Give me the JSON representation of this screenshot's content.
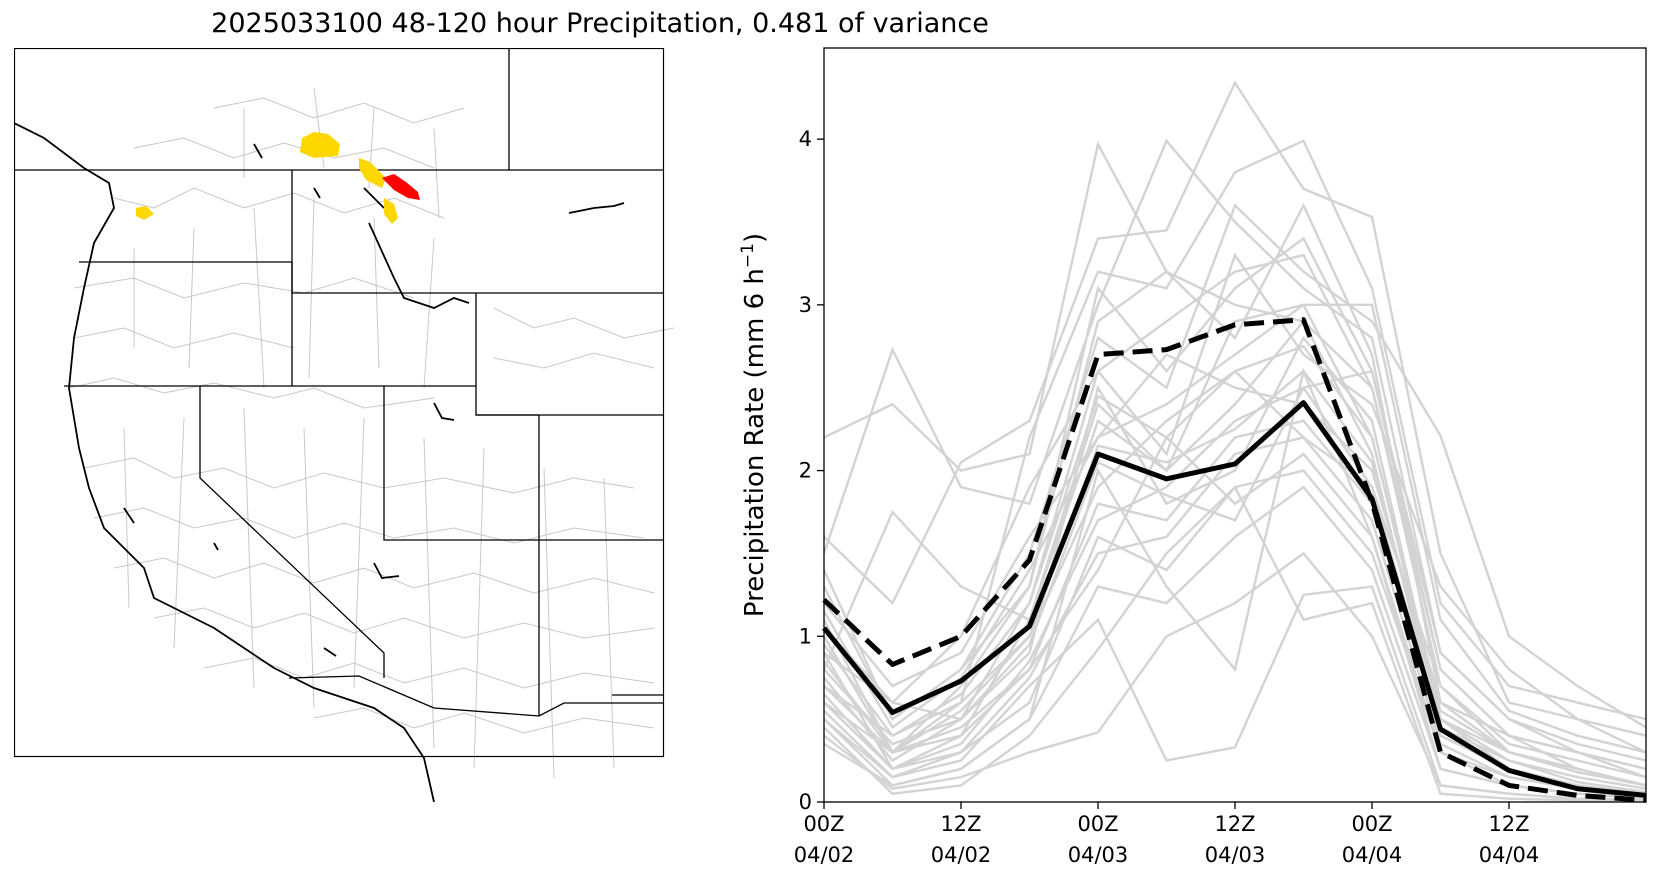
{
  "title": "2025033100 48-120 hour Precipitation, 0.481 of variance",
  "map": {
    "highlight_colors": {
      "moderate": "#FFD700",
      "high": "#FF0000"
    },
    "state_border_color": "#000000",
    "basin_border_color": "#BBBBBB"
  },
  "chart_data": {
    "type": "line",
    "ylabel": "Precipitation Rate (mm 6 h",
    "ylabel_sup": "−1",
    "ylabel_close": ")",
    "ylim": [
      0,
      4.55
    ],
    "xlim": [
      0,
      18
    ],
    "y_ticks": [
      0,
      1,
      2,
      3,
      4
    ],
    "x_ticks": [
      {
        "x": 0,
        "line1": "00Z",
        "line2": "04/02"
      },
      {
        "x": 3,
        "line1": "12Z",
        "line2": "04/02"
      },
      {
        "x": 6,
        "line1": "00Z",
        "line2": "04/03"
      },
      {
        "x": 9,
        "line1": "12Z",
        "line2": "04/03"
      },
      {
        "x": 12,
        "line1": "00Z",
        "line2": "04/04"
      },
      {
        "x": 15,
        "line1": "12Z",
        "line2": "04/04"
      }
    ],
    "x": [
      0,
      1.5,
      3,
      4.5,
      6,
      7.5,
      9,
      10.5,
      12,
      13.5,
      15,
      16.5,
      18
    ],
    "series": [
      {
        "style": "solid-black",
        "values": [
          1.05,
          0.54,
          0.73,
          1.06,
          2.1,
          1.95,
          2.04,
          2.41,
          1.83,
          0.44,
          0.19,
          0.08,
          0.04
        ]
      },
      {
        "style": "dashed-black",
        "values": [
          1.22,
          0.83,
          1.0,
          1.46,
          2.7,
          2.73,
          2.88,
          2.91,
          1.81,
          0.3,
          0.1,
          0.04,
          0.01
        ]
      }
    ],
    "ensemble_members": [
      [
        2.2,
        2.4,
        2.0,
        2.1,
        3.97,
        3.2,
        3.0,
        2.9,
        2.5,
        0.8,
        0.4,
        0.3,
        0.2
      ],
      [
        1.5,
        2.73,
        1.9,
        1.8,
        3.0,
        3.99,
        3.5,
        3.1,
        2.8,
        0.9,
        0.5,
        0.3,
        0.15
      ],
      [
        1.6,
        1.2,
        2.05,
        2.3,
        3.4,
        3.45,
        4.34,
        3.7,
        3.53,
        1.5,
        0.6,
        0.5,
        0.4
      ],
      [
        1.1,
        0.3,
        0.6,
        2.2,
        3.2,
        3.1,
        3.8,
        3.99,
        3.1,
        1.2,
        0.7,
        0.6,
        0.5
      ],
      [
        1.3,
        0.5,
        0.8,
        1.5,
        2.8,
        2.5,
        3.6,
        3.2,
        2.9,
        2.21,
        1.0,
        0.7,
        0.45
      ],
      [
        0.9,
        0.6,
        0.5,
        1.2,
        2.6,
        2.1,
        3.3,
        2.7,
        2.4,
        1.3,
        0.8,
        0.5,
        0.3
      ],
      [
        0.8,
        1.75,
        1.3,
        1.1,
        2.4,
        2.0,
        2.9,
        3.0,
        2.2,
        0.5,
        0.3,
        0.2,
        0.1
      ],
      [
        1.2,
        0.7,
        0.9,
        1.6,
        2.2,
        2.7,
        2.5,
        2.4,
        2.0,
        0.6,
        0.4,
        0.2,
        0.1
      ],
      [
        0.7,
        0.4,
        0.6,
        1.0,
        1.9,
        2.3,
        2.6,
        2.2,
        1.9,
        0.7,
        0.3,
        0.2,
        0.1
      ],
      [
        0.6,
        0.3,
        0.4,
        0.8,
        1.8,
        1.7,
        2.2,
        2.3,
        1.8,
        0.4,
        0.2,
        0.1,
        0.05
      ],
      [
        0.9,
        0.2,
        0.3,
        0.6,
        1.6,
        1.4,
        1.9,
        2.0,
        1.5,
        0.3,
        0.1,
        0.05,
        0.02
      ],
      [
        0.5,
        0.1,
        0.2,
        0.5,
        1.3,
        1.2,
        1.6,
        1.9,
        1.4,
        0.2,
        0.1,
        0.05,
        0.02
      ],
      [
        0.55,
        0.15,
        0.25,
        0.7,
        1.1,
        0.25,
        0.33,
        1.25,
        1.3,
        0.1,
        0.05,
        0.02,
        0.01
      ],
      [
        0.45,
        0.05,
        0.1,
        0.4,
        0.92,
        1.5,
        1.9,
        1.1,
        1.2,
        0.05,
        0.02,
        0.01,
        0.01
      ],
      [
        0.4,
        0.08,
        0.15,
        0.3,
        0.42,
        1.0,
        1.2,
        1.5,
        1.0,
        0.1,
        0.05,
        0.02,
        0.01
      ],
      [
        0.35,
        0.1,
        0.2,
        0.5,
        2.0,
        1.3,
        0.8,
        2.6,
        1.6,
        0.2,
        0.1,
        0.05,
        0.02
      ],
      [
        1.0,
        0.3,
        0.7,
        1.3,
        3.1,
        2.6,
        3.1,
        3.4,
        2.6,
        0.8,
        0.4,
        0.3,
        0.2
      ],
      [
        0.75,
        0.25,
        0.5,
        0.9,
        2.5,
        1.8,
        2.0,
        2.8,
        2.3,
        0.5,
        0.2,
        0.1,
        0.05
      ],
      [
        1.4,
        0.5,
        0.8,
        1.3,
        2.9,
        3.2,
        2.8,
        3.6,
        2.7,
        0.6,
        0.3,
        0.2,
        0.1
      ],
      [
        0.65,
        0.2,
        0.4,
        1.1,
        2.3,
        2.0,
        2.4,
        2.9,
        2.1,
        0.4,
        0.2,
        0.1,
        0.05
      ],
      [
        0.8,
        0.35,
        0.5,
        0.95,
        2.05,
        1.85,
        1.7,
        2.5,
        2.6,
        0.9,
        0.5,
        0.35,
        0.25
      ],
      [
        1.15,
        0.45,
        0.75,
        1.4,
        2.2,
        2.4,
        2.7,
        3.0,
        3.0,
        1.1,
        0.55,
        0.4,
        0.3
      ],
      [
        0.5,
        0.15,
        0.3,
        0.75,
        1.5,
        1.6,
        2.1,
        2.2,
        1.7,
        0.35,
        0.15,
        0.08,
        0.04
      ],
      [
        0.6,
        0.2,
        0.35,
        0.85,
        1.7,
        1.9,
        2.3,
        2.5,
        1.9,
        0.45,
        0.25,
        0.12,
        0.06
      ],
      [
        1.05,
        0.6,
        1.0,
        1.9,
        2.6,
        2.9,
        3.2,
        3.3,
        2.5,
        0.7,
        0.35,
        0.25,
        0.15
      ],
      [
        0.7,
        0.3,
        0.45,
        0.8,
        1.4,
        2.2,
        1.8,
        2.1,
        1.6,
        0.3,
        0.15,
        0.08,
        0.03
      ],
      [
        0.95,
        0.4,
        0.65,
        1.2,
        2.45,
        2.2,
        2.6,
        2.75,
        2.2,
        0.55,
        0.3,
        0.18,
        0.1
      ],
      [
        0.85,
        0.3,
        0.55,
        1.0,
        2.15,
        2.05,
        2.25,
        2.6,
        2.05,
        0.5,
        0.25,
        0.15,
        0.08
      ]
    ]
  }
}
